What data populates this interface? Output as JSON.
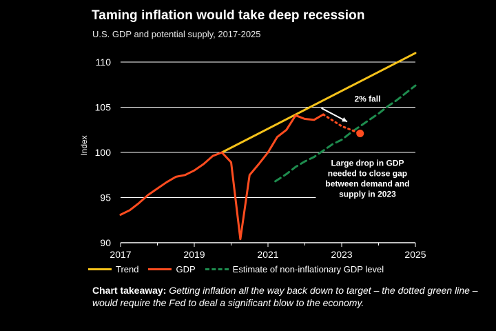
{
  "header": {
    "title": "Taming inflation would take deep recession",
    "subtitle": "U.S. GDP and potential supply, 2017-2025"
  },
  "takeaway": {
    "label": "Chart takeaway:",
    "text": "Getting inflation all the way back down to target – the dotted green line – would require the Fed to deal a significant blow to the economy."
  },
  "colors": {
    "trend": "#f5c21a",
    "gdp": "#ff4c1f",
    "estimate": "#1e8c4e",
    "projection": "#ff4c1f",
    "grid": "#ffffff",
    "text": "#ffffff"
  },
  "chart_data": {
    "type": "line",
    "ylabel": "Index",
    "xlim": [
      2017,
      2025
    ],
    "ylim": [
      90,
      110
    ],
    "x_ticks": [
      "2017",
      "2019",
      "2021",
      "2023",
      "2025"
    ],
    "y_ticks": [
      "90",
      "95",
      "100",
      "105",
      "110"
    ],
    "grid": "horizontal",
    "legend_position": "bottom",
    "series": [
      {
        "name": "Trend",
        "style": "solid",
        "points": [
          [
            2019.75,
            100.0
          ],
          [
            2025.0,
            111.0
          ]
        ]
      },
      {
        "name": "GDP",
        "style": "solid",
        "points": [
          [
            2017.0,
            93.1
          ],
          [
            2017.25,
            93.6
          ],
          [
            2017.5,
            94.4
          ],
          [
            2017.75,
            95.3
          ],
          [
            2018.0,
            96.0
          ],
          [
            2018.25,
            96.7
          ],
          [
            2018.5,
            97.3
          ],
          [
            2018.75,
            97.5
          ],
          [
            2019.0,
            98.0
          ],
          [
            2019.25,
            98.7
          ],
          [
            2019.5,
            99.6
          ],
          [
            2019.75,
            100.0
          ],
          [
            2020.0,
            98.9
          ],
          [
            2020.25,
            90.4
          ],
          [
            2020.5,
            97.5
          ],
          [
            2020.75,
            98.7
          ],
          [
            2021.0,
            100.0
          ],
          [
            2021.25,
            101.7
          ],
          [
            2021.5,
            102.5
          ],
          [
            2021.75,
            104.1
          ],
          [
            2022.0,
            103.7
          ],
          [
            2022.25,
            103.6
          ],
          [
            2022.5,
            104.2
          ]
        ]
      },
      {
        "name": "GDP projection",
        "style": "dotted",
        "points": [
          [
            2022.5,
            104.2
          ],
          [
            2023.0,
            102.9
          ],
          [
            2023.5,
            102.1
          ]
        ]
      },
      {
        "name": "Estimate of non-inflationary GDP level",
        "style": "dashed",
        "points": [
          [
            2021.2,
            96.8
          ],
          [
            2021.5,
            97.6
          ],
          [
            2021.75,
            98.4
          ],
          [
            2022.0,
            99.0
          ],
          [
            2022.25,
            99.5
          ],
          [
            2022.5,
            100.2
          ],
          [
            2022.75,
            100.9
          ],
          [
            2023.0,
            101.4
          ],
          [
            2023.25,
            102.2
          ],
          [
            2023.5,
            102.9
          ],
          [
            2023.75,
            103.6
          ],
          [
            2024.0,
            104.3
          ],
          [
            2024.25,
            105.1
          ],
          [
            2024.5,
            105.8
          ],
          [
            2024.75,
            106.6
          ],
          [
            2025.0,
            107.4
          ]
        ]
      }
    ],
    "marker": {
      "x": 2023.5,
      "y": 102.1
    },
    "annotations": [
      {
        "text": "2% fall",
        "at": [
          2023.7,
          105.6
        ]
      },
      {
        "lines": [
          "Large drop in GDP",
          "needed to close gap",
          "between demand and",
          "supply in 2023"
        ],
        "at": [
          2023.7,
          98.5
        ]
      }
    ]
  },
  "legend": {
    "items": [
      {
        "label": "Trend"
      },
      {
        "label": "GDP"
      },
      {
        "label": "Estimate of non-inflationary GDP level"
      }
    ]
  }
}
